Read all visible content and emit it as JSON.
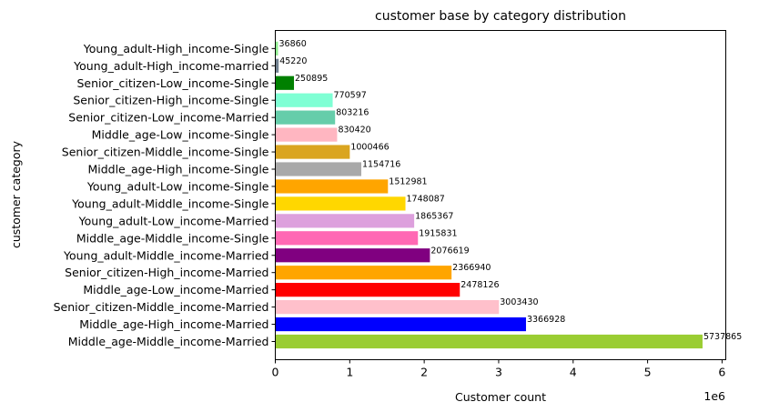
{
  "chart_data": {
    "type": "bar",
    "orientation": "horizontal",
    "title": "customer base by category distribution",
    "xlabel": "Customer count",
    "ylabel": "customer category",
    "x_scale_label": "1e6",
    "xlim": [
      0,
      6050000
    ],
    "xticks": [
      0,
      1000000,
      2000000,
      3000000,
      4000000,
      5000000,
      6000000
    ],
    "xtick_labels": [
      "0",
      "1",
      "2",
      "3",
      "4",
      "5",
      "6"
    ],
    "grid": false,
    "categories": [
      "Middle_age-Middle_income-Married",
      "Middle_age-High_income-Married",
      "Senior_citizen-Middle_income-Married",
      "Middle_age-Low_income-Married",
      "Senior_citizen-High_income-Married",
      "Young_adult-Middle_income-Married",
      "Middle_age-Middle_income-Single",
      "Young_adult-Low_income-Married",
      "Young_adult-Middle_income-Single",
      "Young_adult-Low_income-Single",
      "Middle_age-High_income-Single",
      "Senior_citizen-Middle_income-Single",
      "Middle_age-Low_income-Single",
      "Senior_citizen-Low_income-Married",
      "Senior_citizen-High_income-Single",
      "Senior_citizen-Low_income-Single",
      "Young_adult-High_income-married",
      "Young_adult-High_income-Single"
    ],
    "values": [
      5737865,
      3366928,
      3003430,
      2478126,
      2366940,
      2076619,
      1915831,
      1865367,
      1748087,
      1512981,
      1154716,
      1000466,
      830420,
      803216,
      770597,
      250895,
      45220,
      36860
    ],
    "value_labels": [
      "5737865",
      "3366928",
      "3003430",
      "2478126",
      "2366940",
      "2076619",
      "1915831",
      "1865367",
      "1748087",
      "1512981",
      "1154716",
      "1000466",
      "830420",
      "803216",
      "770597",
      "250895",
      "45220",
      "36860"
    ],
    "colors": [
      "#9acd32",
      "#0000ff",
      "#ffc0cb",
      "#ff0000",
      "#ffa500",
      "#800080",
      "#ff69b4",
      "#dda0dd",
      "#ffd700",
      "#ffa500",
      "#a9a9a9",
      "#daa520",
      "#ffb6c1",
      "#66cdaa",
      "#7fffd4",
      "#008000",
      "#708090",
      "#90ee90"
    ]
  }
}
